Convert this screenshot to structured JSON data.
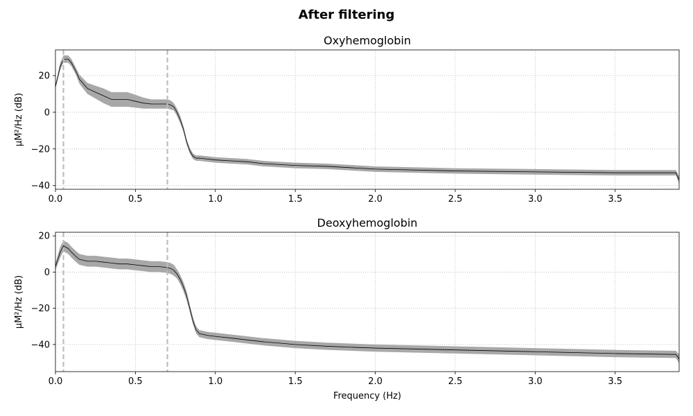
{
  "figure": {
    "suptitle": "After filtering"
  },
  "colors": {
    "line": "#000000",
    "band": "#9e9e9e",
    "cutoff": "#bdbdbd",
    "grid": "#b0b0b0"
  },
  "chart_data": [
    {
      "type": "line",
      "title": "Oxyhemoglobin",
      "xlabel": "",
      "ylabel": "µM²/Hz (dB)",
      "xlim": [
        0,
        3.9
      ],
      "ylim": [
        -42,
        34
      ],
      "xticks": [
        0,
        0.5,
        1.0,
        1.5,
        2.0,
        2.5,
        3.0,
        3.5
      ],
      "xtick_labels": [
        "0.0",
        "0.5",
        "1.0",
        "1.5",
        "2.0",
        "2.5",
        "3.0",
        "3.5"
      ],
      "yticks": [
        20,
        0,
        -20,
        -40
      ],
      "ytick_labels": [
        "20",
        "0",
        "−20",
        "−40"
      ],
      "grid": true,
      "vlines": [
        0.05,
        0.7
      ],
      "series": [
        {
          "x": [
            0,
            0.03,
            0.05,
            0.08,
            0.1,
            0.13,
            0.15,
            0.2,
            0.25,
            0.3,
            0.35,
            0.4,
            0.45,
            0.5,
            0.55,
            0.6,
            0.65,
            0.7,
            0.72,
            0.74,
            0.76,
            0.78,
            0.8,
            0.82,
            0.84,
            0.86,
            0.88,
            0.9,
            0.95,
            1.0,
            1.1,
            1.2,
            1.3,
            1.5,
            1.7,
            2.0,
            2.5,
            3.0,
            3.5,
            3.88,
            3.9
          ],
          "y": [
            14,
            25,
            29,
            29,
            27,
            22,
            18,
            13,
            11,
            9,
            7,
            7,
            7,
            6,
            5,
            4.5,
            4.5,
            4.5,
            4,
            3,
            0,
            -4,
            -9,
            -16,
            -21,
            -24,
            -25,
            -25,
            -25.5,
            -26,
            -26.5,
            -27,
            -28,
            -29,
            -29.5,
            -31,
            -32,
            -32.5,
            -33,
            -33,
            -37
          ],
          "band": [
            1,
            2,
            2,
            2,
            2,
            2,
            2.5,
            3,
            3.5,
            4,
            4,
            4,
            4,
            3.5,
            3,
            2.5,
            2.5,
            2.5,
            2.5,
            2,
            2,
            2,
            1.5,
            1.5,
            1.5,
            1.5,
            1.5,
            1.5,
            1.5,
            1.5,
            1.5,
            1.5,
            1.5,
            1.5,
            1.5,
            1.5,
            1.5,
            1.5,
            1.5,
            1.5,
            2
          ]
        }
      ]
    },
    {
      "type": "line",
      "title": "Deoxyhemoglobin",
      "xlabel": "Frequency (Hz)",
      "ylabel": "µM²/Hz (dB)",
      "xlim": [
        0,
        3.9
      ],
      "ylim": [
        -55,
        22
      ],
      "xticks": [
        0,
        0.5,
        1.0,
        1.5,
        2.0,
        2.5,
        3.0,
        3.5
      ],
      "xtick_labels": [
        "0.0",
        "0.5",
        "1.0",
        "1.5",
        "2.0",
        "2.5",
        "3.0",
        "3.5"
      ],
      "yticks": [
        20,
        0,
        -20,
        -40
      ],
      "ytick_labels": [
        "20",
        "0",
        "−20",
        "−40"
      ],
      "grid": true,
      "vlines": [
        0.05,
        0.7
      ],
      "series": [
        {
          "x": [
            0,
            0.03,
            0.05,
            0.08,
            0.1,
            0.13,
            0.15,
            0.2,
            0.25,
            0.3,
            0.35,
            0.4,
            0.45,
            0.5,
            0.55,
            0.6,
            0.65,
            0.7,
            0.72,
            0.74,
            0.76,
            0.78,
            0.8,
            0.82,
            0.84,
            0.86,
            0.88,
            0.9,
            0.95,
            1.0,
            1.1,
            1.2,
            1.3,
            1.5,
            1.7,
            2.0,
            2.5,
            3.0,
            3.5,
            3.88,
            3.9
          ],
          "y": [
            3,
            11,
            14.5,
            13,
            11,
            8.5,
            7,
            6,
            6,
            5.5,
            5,
            4.5,
            4.5,
            4,
            3.5,
            3,
            3,
            2.5,
            2,
            1,
            -1,
            -4,
            -8,
            -13,
            -20,
            -27,
            -32,
            -34,
            -35,
            -35.5,
            -36.5,
            -37.5,
            -38.5,
            -40,
            -41,
            -42,
            -43,
            -44,
            -45,
            -45.5,
            -48
          ],
          "band": [
            2,
            3,
            3,
            3,
            3,
            3,
            3,
            3,
            3,
            3,
            3,
            3,
            3,
            3,
            3,
            3,
            3,
            3,
            3,
            3,
            2.5,
            2.5,
            2.5,
            2.5,
            2,
            2,
            2,
            2,
            2,
            2,
            2,
            2,
            2,
            2,
            2,
            2,
            2,
            2,
            2,
            2,
            2.5
          ]
        }
      ]
    }
  ]
}
